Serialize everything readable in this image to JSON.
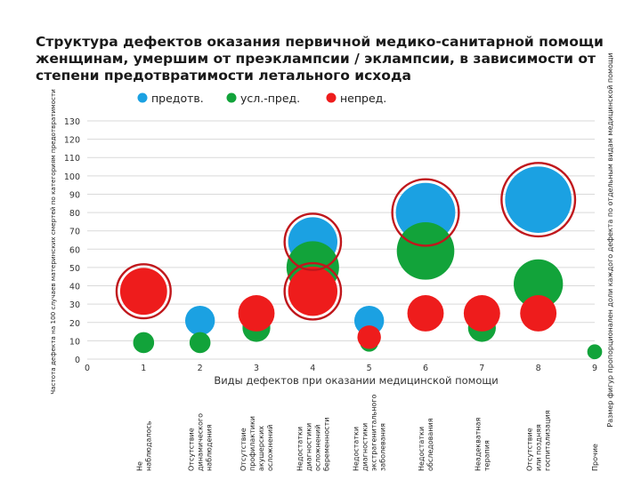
{
  "chart_data": {
    "type": "bubble",
    "title": "Структура дефектов оказания первичной медико-санитарной помощи женщинам, умершим от преэклампсии / эклампсии, в зависимости от степени предотвратимости летального исхода",
    "xlabel": "Виды дефектов при оказании медицинской помощи",
    "ylabel": "Частота дефекта на 100 случаев материнских смертей по категориям предотвратимости",
    "size_label": "Размер фигур пропорционален доли каждого дефекта по отдельным видам медицинской помощи",
    "legend_position": "top",
    "xlim": [
      0,
      9
    ],
    "ylim": [
      0,
      130
    ],
    "x_ticks": [
      "0",
      "1",
      "2",
      "3",
      "4",
      "5",
      "6",
      "7",
      "8",
      "9"
    ],
    "y_ticks": [
      "0",
      "10",
      "20",
      "30",
      "40",
      "50",
      "60",
      "70",
      "80",
      "90",
      "100",
      "110",
      "120",
      "130"
    ],
    "categories": [
      "Не наблюдалось",
      "Отсутствие динамического наблюдения",
      "Отсутствие профилактики акушерских осложнений",
      "Недостатки диагностики осложнений беременности",
      "Недостатки диагностики экстрагенитального заболевания",
      "Недостатки обследования",
      "Неадекватная терапия",
      "Отсутствие или поздняя госпитализация",
      "Прочие"
    ],
    "series": [
      {
        "name": "предотв.",
        "color": "#1ba1e2",
        "points": [
          {
            "x": 2,
            "y": 21,
            "size": 8
          },
          {
            "x": 3,
            "y": 18,
            "size": 7
          },
          {
            "x": 4,
            "y": 64,
            "size": 22
          },
          {
            "x": 5,
            "y": 21,
            "size": 8
          },
          {
            "x": 6,
            "y": 80,
            "size": 32
          },
          {
            "x": 8,
            "y": 87,
            "size": 40
          }
        ]
      },
      {
        "name": "усл.-пред.",
        "color": "#12a33a",
        "points": [
          {
            "x": 1,
            "y": 9,
            "size": 4
          },
          {
            "x": 2,
            "y": 9,
            "size": 4
          },
          {
            "x": 3,
            "y": 17,
            "size": 7
          },
          {
            "x": 4,
            "y": 50,
            "size": 25
          },
          {
            "x": 5,
            "y": 9,
            "size": 3
          },
          {
            "x": 6,
            "y": 59,
            "size": 30
          },
          {
            "x": 7,
            "y": 17,
            "size": 7
          },
          {
            "x": 8,
            "y": 41,
            "size": 22
          },
          {
            "x": 9,
            "y": 4,
            "size": 2
          }
        ]
      },
      {
        "name": "непред.",
        "color": "#ee1c1c",
        "points": [
          {
            "x": 1,
            "y": 37,
            "size": 20
          },
          {
            "x": 3,
            "y": 25,
            "size": 12
          },
          {
            "x": 4,
            "y": 37,
            "size": 22
          },
          {
            "x": 5,
            "y": 12,
            "size": 5
          },
          {
            "x": 6,
            "y": 25,
            "size": 12
          },
          {
            "x": 7,
            "y": 25,
            "size": 12
          },
          {
            "x": 8,
            "y": 25,
            "size": 12
          }
        ]
      }
    ],
    "highlight_rings": [
      {
        "x": 1,
        "y": 37,
        "color": "#c0171c"
      },
      {
        "x": 4,
        "y": 64,
        "color": "#c0171c"
      },
      {
        "x": 4,
        "y": 37,
        "color": "#c0171c"
      },
      {
        "x": 6,
        "y": 80,
        "color": "#c0171c"
      },
      {
        "x": 8,
        "y": 87,
        "color": "#c0171c"
      }
    ]
  }
}
